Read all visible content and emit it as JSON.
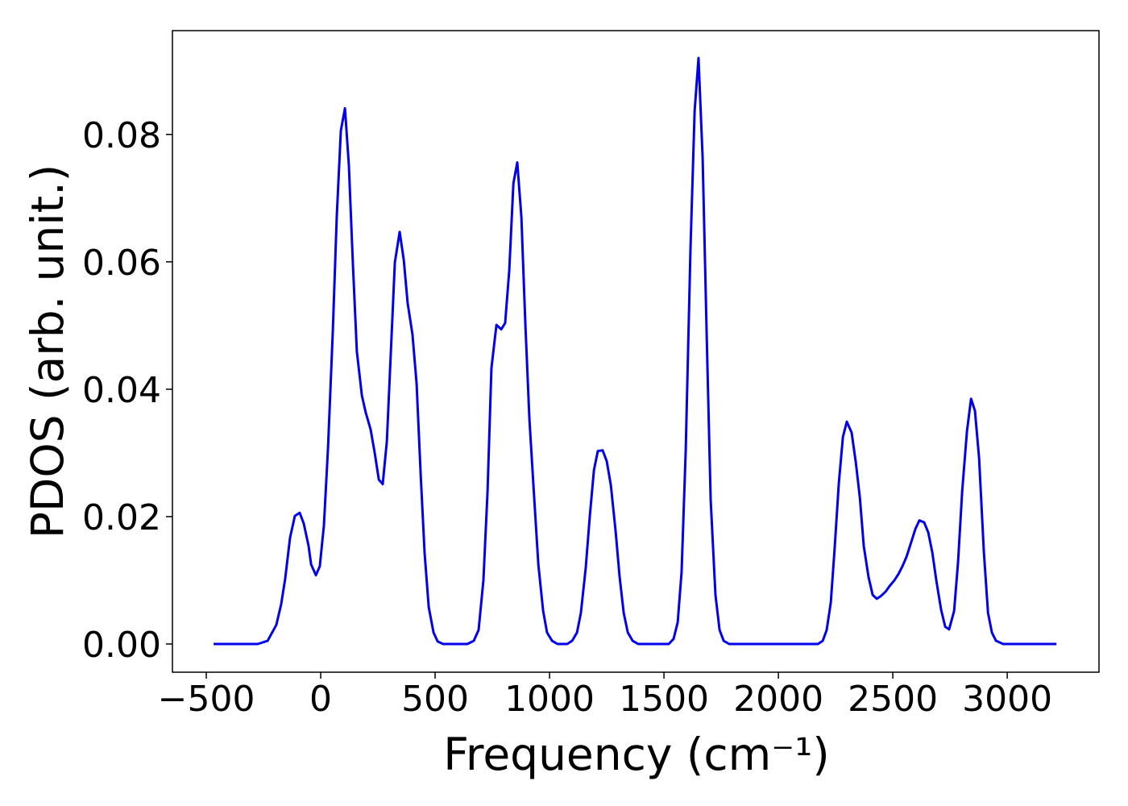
{
  "chart_data": {
    "type": "line",
    "xlabel": "Frequency (cm⁻¹)",
    "ylabel": "PDOS (arb. unit.)",
    "color": "#0000ee",
    "xlim": [
      -648,
      3401
    ],
    "ylim": [
      -0.00443,
      0.0963
    ],
    "xticks": [
      {
        "value": -500,
        "label": "−500"
      },
      0,
      500,
      1000,
      1500,
      2000,
      2500,
      3000
    ],
    "yticks": [
      {
        "value": 0,
        "label": "0.00"
      },
      0.02,
      0.04,
      0.06,
      0.08
    ],
    "x": [
      -468,
      -275,
      -232,
      -194,
      -173,
      -155,
      -134,
      -113,
      -92,
      -74,
      -53,
      -42,
      -21,
      -4,
      14,
      32,
      53,
      70,
      88,
      106,
      123,
      141,
      158,
      180,
      197,
      218,
      236,
      254,
      271,
      289,
      306,
      324,
      345,
      363,
      380,
      401,
      419,
      437,
      454,
      472,
      493,
      511,
      535,
      641,
      669,
      690,
      711,
      729,
      746,
      768,
      789,
      806,
      824,
      842,
      859,
      877,
      894,
      912,
      933,
      951,
      972,
      989,
      1011,
      1035,
      1077,
      1099,
      1120,
      1137,
      1158,
      1176,
      1194,
      1211,
      1232,
      1250,
      1268,
      1289,
      1306,
      1324,
      1342,
      1363,
      1387,
      1521,
      1542,
      1560,
      1577,
      1595,
      1616,
      1634,
      1651,
      1669,
      1687,
      1704,
      1725,
      1743,
      1761,
      1785,
      2173,
      2194,
      2211,
      2229,
      2246,
      2264,
      2282,
      2299,
      2320,
      2338,
      2356,
      2373,
      2394,
      2412,
      2430,
      2447,
      2468,
      2486,
      2507,
      2525,
      2542,
      2560,
      2577,
      2599,
      2616,
      2637,
      2655,
      2673,
      2690,
      2711,
      2729,
      2746,
      2768,
      2785,
      2803,
      2824,
      2842,
      2859,
      2877,
      2898,
      2916,
      2933,
      2951,
      2982,
      3215
    ],
    "values": [
      0,
      0,
      0.0005,
      0.003,
      0.0062,
      0.0103,
      0.0167,
      0.0201,
      0.0206,
      0.0189,
      0.0154,
      0.0125,
      0.0108,
      0.0122,
      0.0186,
      0.0308,
      0.0492,
      0.067,
      0.0806,
      0.0841,
      0.0752,
      0.0594,
      0.0459,
      0.039,
      0.0363,
      0.0337,
      0.03,
      0.0258,
      0.0251,
      0.0318,
      0.0454,
      0.0599,
      0.0647,
      0.0603,
      0.0535,
      0.0486,
      0.0409,
      0.0265,
      0.0143,
      0.0058,
      0.0018,
      0.0004,
      0,
      0,
      0.0005,
      0.0022,
      0.01,
      0.0239,
      0.0433,
      0.0501,
      0.0494,
      0.0504,
      0.0587,
      0.0723,
      0.0756,
      0.067,
      0.0505,
      0.0353,
      0.0229,
      0.0125,
      0.0052,
      0.0018,
      0.0005,
      0,
      0,
      0.0005,
      0.0018,
      0.0049,
      0.0119,
      0.0201,
      0.0273,
      0.0303,
      0.0304,
      0.0287,
      0.0249,
      0.0176,
      0.0106,
      0.0049,
      0.0018,
      0.0005,
      0,
      0,
      0.0008,
      0.0034,
      0.0113,
      0.0303,
      0.0622,
      0.0837,
      0.092,
      0.0763,
      0.048,
      0.0227,
      0.0077,
      0.0022,
      0.0005,
      0,
      0,
      0.0005,
      0.0022,
      0.0065,
      0.0151,
      0.0252,
      0.0325,
      0.0349,
      0.0332,
      0.0286,
      0.023,
      0.0154,
      0.0105,
      0.0077,
      0.0071,
      0.0075,
      0.0082,
      0.0091,
      0.01,
      0.011,
      0.0122,
      0.0137,
      0.0156,
      0.0181,
      0.0194,
      0.0191,
      0.0175,
      0.0143,
      0.01,
      0.0054,
      0.0027,
      0.0023,
      0.0052,
      0.0128,
      0.0239,
      0.0334,
      0.0385,
      0.0366,
      0.0292,
      0.0144,
      0.0049,
      0.0018,
      0.0005,
      0,
      0
    ]
  }
}
